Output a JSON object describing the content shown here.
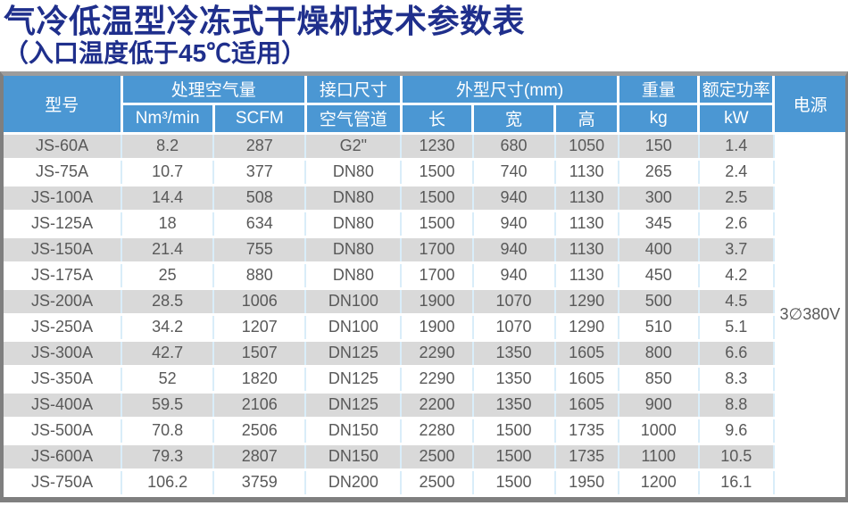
{
  "page": {
    "title": "气冷低温型冷冻式干燥机技术参数表",
    "subtitle": "（入口温度低于45℃适用）"
  },
  "colors": {
    "title_blue": "#1F2F8C",
    "header_blue": "#4B97D3",
    "row_stripe_gray": "#D9D9D9",
    "body_text_gray": "#595959",
    "column_divider_blue": "#D9EDF9",
    "outer_border_gray": "#7F7F7F"
  },
  "table": {
    "header": {
      "model": "型号",
      "air_flow": "处理空气量",
      "air_flow_units": [
        "Nm³/min",
        "SCFM"
      ],
      "connection": "接口尺寸",
      "connection_sub": "空气管道",
      "dimensions": "外型尺寸(mm)",
      "dim_length": "长",
      "dim_width": "宽",
      "dim_height": "高",
      "weight": "重量",
      "weight_sub": "kg",
      "rated_power": "额定功率",
      "rated_power_sub": "kW",
      "power_supply": "电源"
    },
    "supply_value": "3∅380V",
    "rows": [
      {
        "model": "JS-60A",
        "nm3_min": "8.2",
        "scfm": "287",
        "air_pipe": "G2\"",
        "length": "1230",
        "width": "680",
        "height": "1050",
        "weight_kg": "150",
        "power_kw": "1.4"
      },
      {
        "model": "JS-75A",
        "nm3_min": "10.7",
        "scfm": "377",
        "air_pipe": "DN80",
        "length": "1500",
        "width": "740",
        "height": "1130",
        "weight_kg": "265",
        "power_kw": "2.4"
      },
      {
        "model": "JS-100A",
        "nm3_min": "14.4",
        "scfm": "508",
        "air_pipe": "DN80",
        "length": "1500",
        "width": "940",
        "height": "1130",
        "weight_kg": "300",
        "power_kw": "2.5"
      },
      {
        "model": "JS-125A",
        "nm3_min": "18",
        "scfm": "634",
        "air_pipe": "DN80",
        "length": "1500",
        "width": "940",
        "height": "1130",
        "weight_kg": "345",
        "power_kw": "2.6"
      },
      {
        "model": "JS-150A",
        "nm3_min": "21.4",
        "scfm": "755",
        "air_pipe": "DN80",
        "length": "1700",
        "width": "940",
        "height": "1130",
        "weight_kg": "400",
        "power_kw": "3.7"
      },
      {
        "model": "JS-175A",
        "nm3_min": "25",
        "scfm": "880",
        "air_pipe": "DN80",
        "length": "1700",
        "width": "940",
        "height": "1130",
        "weight_kg": "450",
        "power_kw": "4.2"
      },
      {
        "model": "JS-200A",
        "nm3_min": "28.5",
        "scfm": "1006",
        "air_pipe": "DN100",
        "length": "1900",
        "width": "1070",
        "height": "1290",
        "weight_kg": "500",
        "power_kw": "4.5"
      },
      {
        "model": "JS-250A",
        "nm3_min": "34.2",
        "scfm": "1207",
        "air_pipe": "DN100",
        "length": "1900",
        "width": "1070",
        "height": "1290",
        "weight_kg": "510",
        "power_kw": "5.1"
      },
      {
        "model": "JS-300A",
        "nm3_min": "42.7",
        "scfm": "1507",
        "air_pipe": "DN125",
        "length": "2290",
        "width": "1350",
        "height": "1605",
        "weight_kg": "800",
        "power_kw": "6.6"
      },
      {
        "model": "JS-350A",
        "nm3_min": "52",
        "scfm": "1820",
        "air_pipe": "DN125",
        "length": "2290",
        "width": "1350",
        "height": "1605",
        "weight_kg": "850",
        "power_kw": "8.3"
      },
      {
        "model": "JS-400A",
        "nm3_min": "59.5",
        "scfm": "2106",
        "air_pipe": "DN125",
        "length": "2200",
        "width": "1350",
        "height": "1605",
        "weight_kg": "900",
        "power_kw": "8.8"
      },
      {
        "model": "JS-500A",
        "nm3_min": "70.8",
        "scfm": "2506",
        "air_pipe": "DN150",
        "length": "2280",
        "width": "1500",
        "height": "1735",
        "weight_kg": "1000",
        "power_kw": "9.6"
      },
      {
        "model": "JS-600A",
        "nm3_min": "79.3",
        "scfm": "2807",
        "air_pipe": "DN150",
        "length": "2500",
        "width": "1500",
        "height": "1735",
        "weight_kg": "1100",
        "power_kw": "10.5"
      },
      {
        "model": "JS-750A",
        "nm3_min": "106.2",
        "scfm": "3759",
        "air_pipe": "DN200",
        "length": "2500",
        "width": "1500",
        "height": "1950",
        "weight_kg": "1200",
        "power_kw": "16.1"
      }
    ]
  }
}
